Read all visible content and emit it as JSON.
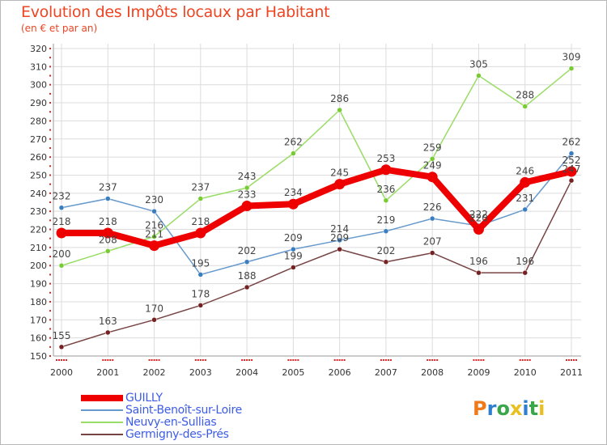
{
  "title": "Evolution des Impôts locaux par Habitant",
  "subtitle": "(en € et par an)",
  "logo": {
    "text": "Proxiti",
    "letter_colors": [
      "#f07a1a",
      "#2f7fd0",
      "#3aa64a",
      "#e8c020",
      "#2f7fd0",
      "#3aa64a",
      "#e8c020"
    ]
  },
  "chart_data": {
    "type": "line",
    "title": "Evolution des Impôts locaux par Habitant",
    "subtitle": "(en € et par an)",
    "xlabel": "",
    "ylabel": "",
    "x": [
      "2000",
      "2001",
      "2002",
      "2003",
      "2004",
      "2005",
      "2006",
      "2007",
      "2008",
      "2009",
      "2010",
      "2011"
    ],
    "ylim": [
      150,
      320
    ],
    "yticks": [
      150,
      160,
      170,
      180,
      190,
      200,
      210,
      220,
      230,
      240,
      250,
      260,
      270,
      280,
      290,
      300,
      310,
      320
    ],
    "grid": true,
    "legend_position": "bottom-left",
    "series": [
      {
        "name": "Saint-Benoît-sur-Loire",
        "color": "#6699cc",
        "marker": "#3a7ec0",
        "values": [
          232,
          237,
          230,
          195,
          202,
          209,
          214,
          219,
          226,
          222,
          231,
          262
        ]
      },
      {
        "name": "Neuvy-en-Sullias",
        "color": "#99dd66",
        "marker": "#77cc33",
        "values": [
          200,
          208,
          216,
          237,
          243,
          262,
          286,
          236,
          259,
          305,
          288,
          309
        ]
      },
      {
        "name": "Germigny-des-Prés",
        "color": "#774444",
        "marker": "#772222",
        "values": [
          155,
          163,
          170,
          178,
          188,
          199,
          209,
          202,
          207,
          196,
          196,
          247
        ]
      },
      {
        "name": "GUILLY",
        "color": "#ee0000",
        "marker": "#ee0000",
        "values": [
          218,
          218,
          211,
          218,
          233,
          234,
          245,
          253,
          249,
          220,
          246,
          252
        ]
      }
    ],
    "legend": [
      "GUILLY",
      "Saint-Benoît-sur-Loire",
      "Neuvy-en-Sullias",
      "Germigny-des-Prés"
    ]
  }
}
